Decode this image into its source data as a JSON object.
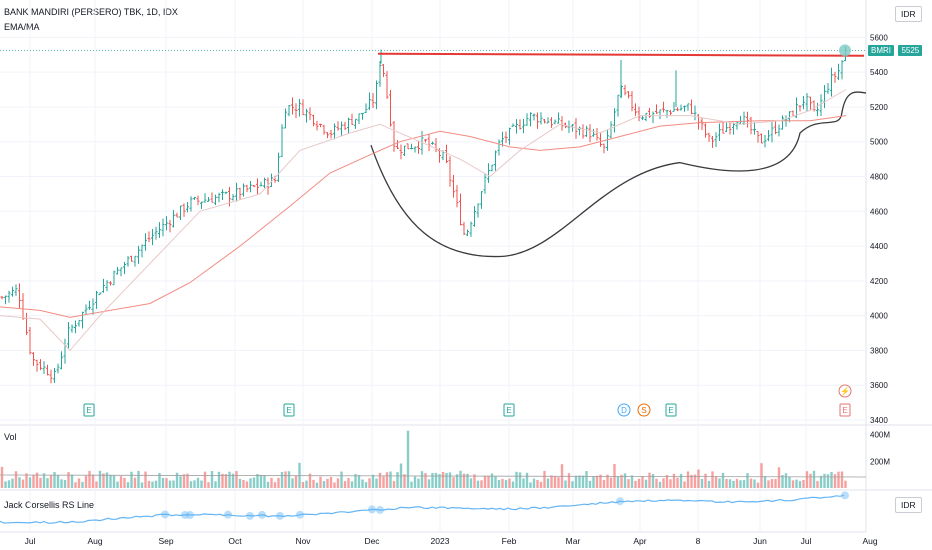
{
  "header": {
    "symbol_title": "BANK MANDIRI (PERSERO) TBK, 1D, IDX",
    "indicator": "EMA/MA",
    "currency": "IDR"
  },
  "price_axis": {
    "ticks": [
      "5600",
      "5400",
      "5200",
      "5000",
      "4800",
      "4600",
      "4400",
      "4200",
      "4000",
      "3800",
      "3600",
      "3400"
    ],
    "last_symbol": "BMRI",
    "last_price": "5525"
  },
  "volume_pane": {
    "label": "Vol",
    "ticks": [
      "400M",
      "200M"
    ]
  },
  "rs_pane": {
    "label": "Jack Corsellis RS Line",
    "currency": "IDR"
  },
  "time_axis": {
    "labels": [
      "Jul",
      "Aug",
      "Sep",
      "Oct",
      "Nov",
      "Dec",
      "2023",
      "Feb",
      "Mar",
      "Apr",
      "8",
      "Jun",
      "Jul",
      "Aug"
    ]
  },
  "event_markers": [
    {
      "symbol": "E",
      "kind": "earnings"
    },
    {
      "symbol": "E",
      "kind": "earnings"
    },
    {
      "symbol": "E",
      "kind": "earnings"
    },
    {
      "symbol": "D",
      "kind": "dividend"
    },
    {
      "symbol": "S",
      "kind": "split"
    },
    {
      "symbol": "E",
      "kind": "earnings"
    },
    {
      "symbol": "E",
      "kind": "earnings-upcoming"
    },
    {
      "symbol": "⚡",
      "kind": "news"
    }
  ],
  "chart_data": {
    "type": "candlestick",
    "series": [
      {
        "name": "BMRI",
        "key_points": [
          [
            "Jul",
            4100
          ],
          [
            "Jul",
            3650
          ],
          [
            "Aug",
            4150
          ],
          [
            "Sep",
            4600
          ],
          [
            "Oct",
            4700
          ],
          [
            "Nov",
            5200
          ],
          [
            "Dec",
            5500
          ],
          [
            "Dec",
            4950
          ],
          [
            "2023",
            4450
          ],
          [
            "Feb",
            5050
          ],
          [
            "Mar",
            5100
          ],
          [
            "Apr",
            5150
          ],
          [
            "Jun",
            5000
          ],
          [
            "Jul",
            5250
          ],
          [
            "Jul",
            5525
          ]
        ]
      },
      {
        "name": "EMA",
        "key_points": [
          [
            "Jul",
            4000
          ],
          [
            "Dec",
            5000
          ],
          [
            "Feb",
            5000
          ],
          [
            "Jul",
            5200
          ]
        ]
      },
      {
        "name": "MA",
        "key_points": [
          [
            "Jul",
            4050
          ],
          [
            "Dec",
            4900
          ],
          [
            "2023",
            5060
          ],
          [
            "Feb",
            4950
          ],
          [
            "Jul",
            5140
          ]
        ]
      }
    ],
    "resistance_level": 5500,
    "ylim": [
      3400,
      5650
    ],
    "volume_ylim": [
      0,
      450
    ]
  },
  "colors": {
    "up": "#26a69a",
    "down": "#ef5350",
    "resistance": "#e53935",
    "pattern": "#3a3a3a",
    "ma_slow": "#f28b82",
    "ma_fast": "#e8c8c8",
    "rs_line": "#64b5f6",
    "grid": "#f0f3fa"
  }
}
